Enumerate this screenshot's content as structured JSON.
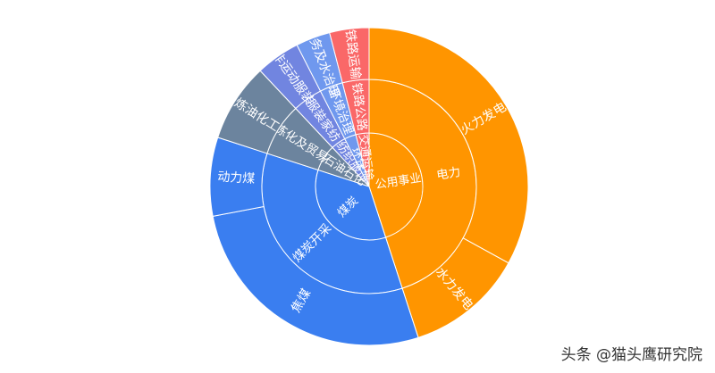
{
  "chart_data": {
    "type": "sunburst",
    "rings": [
      {
        "level": 1,
        "items": [
          {
            "label": "公用事业",
            "value": 45,
            "color": "#ff9500"
          },
          {
            "label": "煤炭",
            "value": 35,
            "color": "#3a7ef0"
          },
          {
            "label": "石油石化",
            "value": 8,
            "color": "#6c849e"
          },
          {
            "label": "纺织服饰",
            "value": 4.5,
            "color": "#7185e0"
          },
          {
            "label": "环保",
            "value": 3.5,
            "color": "#6f98ee"
          },
          {
            "label": "交通运输",
            "value": 4,
            "color": "#fa6868"
          }
        ]
      },
      {
        "level": 2,
        "items": [
          {
            "label": "电力",
            "value": 45,
            "color": "#ff9500"
          },
          {
            "label": "煤炭开采",
            "value": 35,
            "color": "#3a7ef0"
          },
          {
            "label": "炼化及贸易",
            "value": 8,
            "color": "#6c849e"
          },
          {
            "label": "服装家纺",
            "value": 4.5,
            "color": "#7185e0"
          },
          {
            "label": "环境治理",
            "value": 3.5,
            "color": "#6f98ee"
          },
          {
            "label": "铁路公路",
            "value": 4,
            "color": "#fa6868"
          }
        ]
      },
      {
        "level": 3,
        "items": [
          {
            "label": "火力发电",
            "value": 33,
            "color": "#ff9500"
          },
          {
            "label": "水力发电",
            "value": 12,
            "color": "#ff9500"
          },
          {
            "label": "焦煤",
            "value": 27,
            "color": "#3a7ef0"
          },
          {
            "label": "动力煤",
            "value": 8,
            "color": "#3a7ef0"
          },
          {
            "label": "炼油化工",
            "value": 8,
            "color": "#6c849e"
          },
          {
            "label": "非运动服装",
            "value": 4.5,
            "color": "#7185e0"
          },
          {
            "label": "水务及水治理",
            "value": 3.5,
            "color": "#6f98ee"
          },
          {
            "label": "铁路运输",
            "value": 4,
            "color": "#fa6868"
          }
        ]
      }
    ]
  },
  "watermark": "头条 @猫头鹰研究院"
}
